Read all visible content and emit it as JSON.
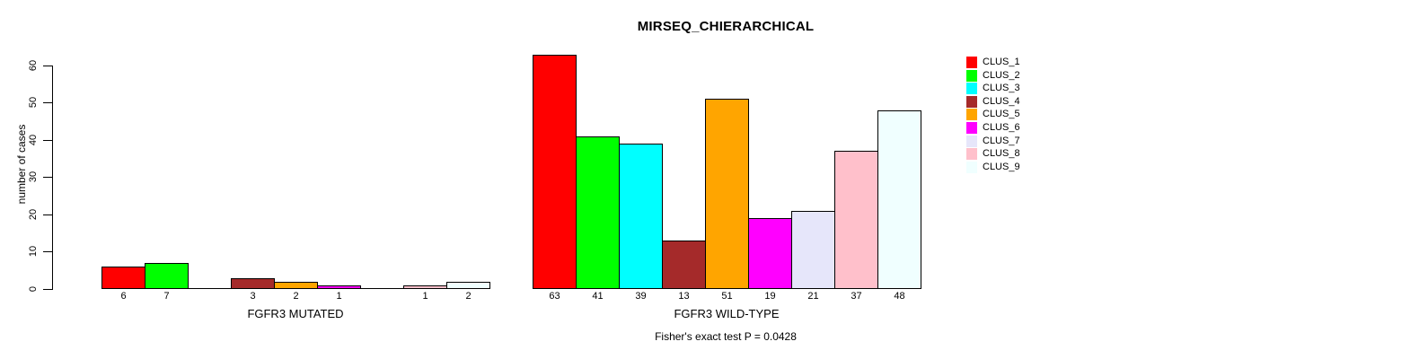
{
  "chart_data": {
    "type": "bar",
    "title": "MIRSEQ_CHIERARCHICAL",
    "ylabel": "number of cases",
    "ylim": [
      0,
      60
    ],
    "yticks": [
      0,
      10,
      20,
      30,
      40,
      50,
      60
    ],
    "grid": false,
    "legend_position": "right",
    "categories": [
      "FGFR3 MUTATED",
      "FGFR3 WILD-TYPE"
    ],
    "series": [
      {
        "name": "CLUS_1",
        "color": "#FF0000",
        "values": [
          6,
          63
        ]
      },
      {
        "name": "CLUS_2",
        "color": "#00FF00",
        "values": [
          7,
          41
        ]
      },
      {
        "name": "CLUS_3",
        "color": "#00FFFF",
        "values": [
          0,
          39
        ]
      },
      {
        "name": "CLUS_4",
        "color": "#A52A2A",
        "values": [
          3,
          13
        ]
      },
      {
        "name": "CLUS_5",
        "color": "#FFA500",
        "values": [
          2,
          51
        ]
      },
      {
        "name": "CLUS_6",
        "color": "#FF00FF",
        "values": [
          1,
          19
        ]
      },
      {
        "name": "CLUS_7",
        "color": "#E6E6FA",
        "values": [
          0,
          21
        ]
      },
      {
        "name": "CLUS_8",
        "color": "#FFC0CB",
        "values": [
          1,
          37
        ]
      },
      {
        "name": "CLUS_9",
        "color": "#F0FFFF",
        "values": [
          2,
          48
        ]
      }
    ],
    "bar_value_labels_note": "values shown under each bar; zero-height bars have no label",
    "annotation": "Fisher's exact test P = 0.0428"
  }
}
